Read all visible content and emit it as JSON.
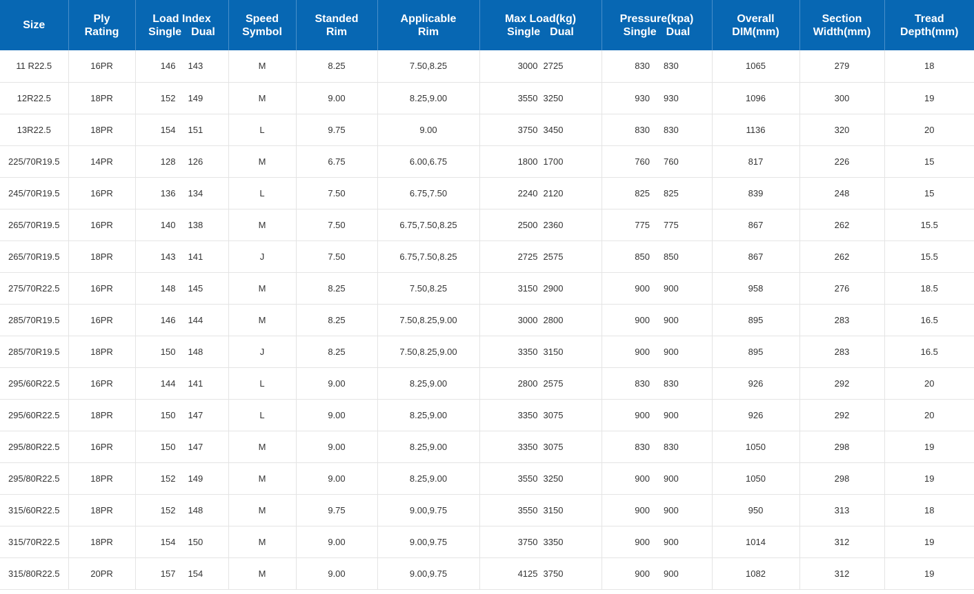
{
  "headers": {
    "size": "Size",
    "ply": [
      "Ply",
      "Rating"
    ],
    "load_index": {
      "title": "Load Index",
      "single": "Single",
      "dual": "Dual"
    },
    "speed": [
      "Speed",
      "Symbol"
    ],
    "standed_rim": [
      "Standed",
      "Rim"
    ],
    "applicable_rim": [
      "Applicable",
      "Rim"
    ],
    "max_load": {
      "title": "Max Load(kg)",
      "single": "Single",
      "dual": "Dual"
    },
    "pressure": {
      "title": "Pressure(kpa)",
      "single": "Single",
      "dual": "Dual"
    },
    "overall_dim": [
      "Overall",
      "DIM(mm)"
    ],
    "section_width": [
      "Section",
      "Width(mm)"
    ],
    "tread_depth": [
      "Tread",
      "Depth(mm)"
    ]
  },
  "rows": [
    {
      "size": "11 R22.5",
      "ply": "16PR",
      "li_s": "146",
      "li_d": "143",
      "speed": "M",
      "std_rim": "8.25",
      "app_rim": "7.50,8.25",
      "ml_s": "3000",
      "ml_d": "2725",
      "pr_s": "830",
      "pr_d": "830",
      "dim": "1065",
      "width": "279",
      "tread": "18"
    },
    {
      "size": "12R22.5",
      "ply": "18PR",
      "li_s": "152",
      "li_d": "149",
      "speed": "M",
      "std_rim": "9.00",
      "app_rim": "8.25,9.00",
      "ml_s": "3550",
      "ml_d": "3250",
      "pr_s": "930",
      "pr_d": "930",
      "dim": "1096",
      "width": "300",
      "tread": "19"
    },
    {
      "size": "13R22.5",
      "ply": "18PR",
      "li_s": "154",
      "li_d": "151",
      "speed": "L",
      "std_rim": "9.75",
      "app_rim": "9.00",
      "ml_s": "3750",
      "ml_d": "3450",
      "pr_s": "830",
      "pr_d": "830",
      "dim": "1136",
      "width": "320",
      "tread": "20"
    },
    {
      "size": "225/70R19.5",
      "ply": "14PR",
      "li_s": "128",
      "li_d": "126",
      "speed": "M",
      "std_rim": "6.75",
      "app_rim": "6.00,6.75",
      "ml_s": "1800",
      "ml_d": "1700",
      "pr_s": "760",
      "pr_d": "760",
      "dim": "817",
      "width": "226",
      "tread": "15"
    },
    {
      "size": "245/70R19.5",
      "ply": "16PR",
      "li_s": "136",
      "li_d": "134",
      "speed": "L",
      "std_rim": "7.50",
      "app_rim": "6.75,7.50",
      "ml_s": "2240",
      "ml_d": "2120",
      "pr_s": "825",
      "pr_d": "825",
      "dim": "839",
      "width": "248",
      "tread": "15"
    },
    {
      "size": "265/70R19.5",
      "ply": "16PR",
      "li_s": "140",
      "li_d": "138",
      "speed": "M",
      "std_rim": "7.50",
      "app_rim": "6.75,7.50,8.25",
      "ml_s": "2500",
      "ml_d": "2360",
      "pr_s": "775",
      "pr_d": "775",
      "dim": "867",
      "width": "262",
      "tread": "15.5"
    },
    {
      "size": "265/70R19.5",
      "ply": "18PR",
      "li_s": "143",
      "li_d": "141",
      "speed": "J",
      "std_rim": "7.50",
      "app_rim": "6.75,7.50,8.25",
      "ml_s": "2725",
      "ml_d": "2575",
      "pr_s": "850",
      "pr_d": "850",
      "dim": "867",
      "width": "262",
      "tread": "15.5"
    },
    {
      "size": "275/70R22.5",
      "ply": "16PR",
      "li_s": "148",
      "li_d": "145",
      "speed": "M",
      "std_rim": "8.25",
      "app_rim": "7.50,8.25",
      "ml_s": "3150",
      "ml_d": "2900",
      "pr_s": "900",
      "pr_d": "900",
      "dim": "958",
      "width": "276",
      "tread": "18.5"
    },
    {
      "size": "285/70R19.5",
      "ply": "16PR",
      "li_s": "146",
      "li_d": "144",
      "speed": "M",
      "std_rim": "8.25",
      "app_rim": "7.50,8.25,9.00",
      "ml_s": "3000",
      "ml_d": "2800",
      "pr_s": "900",
      "pr_d": "900",
      "dim": "895",
      "width": "283",
      "tread": "16.5"
    },
    {
      "size": "285/70R19.5",
      "ply": "18PR",
      "li_s": "150",
      "li_d": "148",
      "speed": "J",
      "std_rim": "8.25",
      "app_rim": "7.50,8.25,9.00",
      "ml_s": "3350",
      "ml_d": "3150",
      "pr_s": "900",
      "pr_d": "900",
      "dim": "895",
      "width": "283",
      "tread": "16.5"
    },
    {
      "size": "295/60R22.5",
      "ply": "16PR",
      "li_s": "144",
      "li_d": "141",
      "speed": "L",
      "std_rim": "9.00",
      "app_rim": "8.25,9.00",
      "ml_s": "2800",
      "ml_d": "2575",
      "pr_s": "830",
      "pr_d": "830",
      "dim": "926",
      "width": "292",
      "tread": "20"
    },
    {
      "size": "295/60R22.5",
      "ply": "18PR",
      "li_s": "150",
      "li_d": "147",
      "speed": "L",
      "std_rim": "9.00",
      "app_rim": "8.25,9.00",
      "ml_s": "3350",
      "ml_d": "3075",
      "pr_s": "900",
      "pr_d": "900",
      "dim": "926",
      "width": "292",
      "tread": "20"
    },
    {
      "size": "295/80R22.5",
      "ply": "16PR",
      "li_s": "150",
      "li_d": "147",
      "speed": "M",
      "std_rim": "9.00",
      "app_rim": "8.25,9.00",
      "ml_s": "3350",
      "ml_d": "3075",
      "pr_s": "830",
      "pr_d": "830",
      "dim": "1050",
      "width": "298",
      "tread": "19"
    },
    {
      "size": "295/80R22.5",
      "ply": "18PR",
      "li_s": "152",
      "li_d": "149",
      "speed": "M",
      "std_rim": "9.00",
      "app_rim": "8.25,9.00",
      "ml_s": "3550",
      "ml_d": "3250",
      "pr_s": "900",
      "pr_d": "900",
      "dim": "1050",
      "width": "298",
      "tread": "19"
    },
    {
      "size": "315/60R22.5",
      "ply": "18PR",
      "li_s": "152",
      "li_d": "148",
      "speed": "M",
      "std_rim": "9.75",
      "app_rim": "9.00,9.75",
      "ml_s": "3550",
      "ml_d": "3150",
      "pr_s": "900",
      "pr_d": "900",
      "dim": "950",
      "width": "313",
      "tread": "18"
    },
    {
      "size": "315/70R22.5",
      "ply": "18PR",
      "li_s": "154",
      "li_d": "150",
      "speed": "M",
      "std_rim": "9.00",
      "app_rim": "9.00,9.75",
      "ml_s": "3750",
      "ml_d": "3350",
      "pr_s": "900",
      "pr_d": "900",
      "dim": "1014",
      "width": "312",
      "tread": "19"
    },
    {
      "size": "315/80R22.5",
      "ply": "20PR",
      "li_s": "157",
      "li_d": "154",
      "speed": "M",
      "std_rim": "9.00",
      "app_rim": "9.00,9.75",
      "ml_s": "4125",
      "ml_d": "3750",
      "pr_s": "900",
      "pr_d": "900",
      "dim": "1082",
      "width": "312",
      "tread": "19"
    }
  ],
  "colors": {
    "header_bg": "#0767b3",
    "header_text": "#ffffff",
    "grid": "#e4e4e4",
    "cell_text": "#333333"
  }
}
